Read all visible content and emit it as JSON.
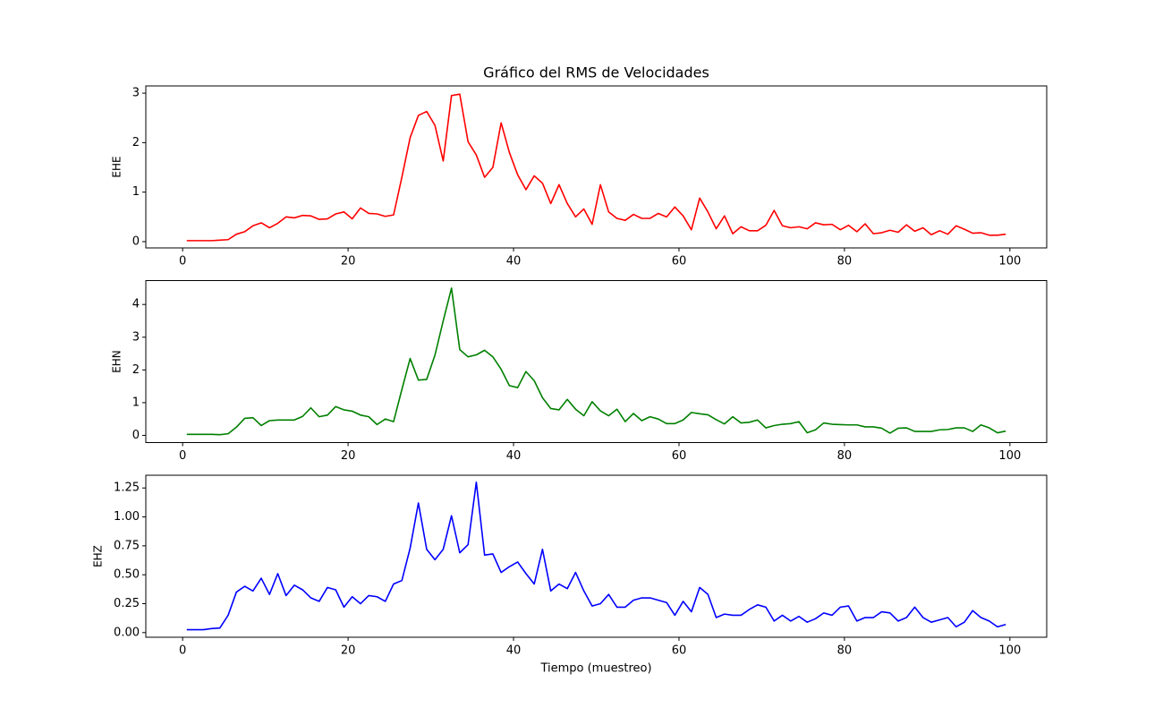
{
  "chart_data": [
    {
      "type": "line",
      "title": "Gráfico del RMS de Velocidades",
      "ylabel": "EHE",
      "color": "#ff0000",
      "x": [
        0.5,
        1.5,
        2.5,
        3.5,
        4.5,
        5.5,
        6.5,
        7.5,
        8.5,
        9.5,
        10.5,
        11.5,
        12.5,
        13.5,
        14.5,
        15.5,
        16.5,
        17.5,
        18.5,
        19.5,
        20.5,
        21.5,
        22.5,
        23.5,
        24.5,
        25.5,
        26.5,
        27.5,
        28.5,
        29.5,
        30.5,
        31.5,
        32.5,
        33.5,
        34.5,
        35.5,
        36.5,
        37.5,
        38.5,
        39.5,
        40.5,
        41.5,
        42.5,
        43.5,
        44.5,
        45.5,
        46.5,
        47.5,
        48.5,
        49.5,
        50.5,
        51.5,
        52.5,
        53.5,
        54.5,
        55.5,
        56.5,
        57.5,
        58.5,
        59.5,
        60.5,
        61.5,
        62.5,
        63.5,
        64.5,
        65.5,
        66.5,
        67.5,
        68.5,
        69.5,
        70.5,
        71.5,
        72.5,
        73.5,
        74.5,
        75.5,
        76.5,
        77.5,
        78.5,
        79.5,
        80.5,
        81.5,
        82.5,
        83.5,
        84.5,
        85.5,
        86.5,
        87.5,
        88.5,
        89.5,
        90.5,
        91.5,
        92.5,
        93.5,
        94.5,
        95.5,
        96.5,
        97.5,
        98.5,
        99.5
      ],
      "values": [
        0.02,
        0.02,
        0.02,
        0.02,
        0.03,
        0.04,
        0.15,
        0.2,
        0.32,
        0.38,
        0.28,
        0.37,
        0.5,
        0.48,
        0.53,
        0.52,
        0.45,
        0.46,
        0.56,
        0.6,
        0.46,
        0.68,
        0.57,
        0.56,
        0.51,
        0.54,
        1.3,
        2.1,
        2.55,
        2.63,
        2.35,
        1.63,
        2.95,
        2.98,
        2.02,
        1.75,
        1.3,
        1.5,
        2.4,
        1.8,
        1.35,
        1.05,
        1.33,
        1.18,
        0.77,
        1.15,
        0.77,
        0.5,
        0.66,
        0.35,
        1.15,
        0.6,
        0.47,
        0.43,
        0.55,
        0.47,
        0.47,
        0.57,
        0.5,
        0.7,
        0.52,
        0.24,
        0.88,
        0.6,
        0.26,
        0.52,
        0.16,
        0.3,
        0.22,
        0.22,
        0.33,
        0.63,
        0.32,
        0.28,
        0.3,
        0.26,
        0.38,
        0.34,
        0.35,
        0.24,
        0.33,
        0.2,
        0.36,
        0.16,
        0.18,
        0.23,
        0.19,
        0.34,
        0.21,
        0.28,
        0.14,
        0.22,
        0.15,
        0.32,
        0.25,
        0.17,
        0.18,
        0.13,
        0.13,
        0.15
      ],
      "xlim": [
        -4.45,
        104.45
      ],
      "xticks": [
        0,
        20,
        40,
        60,
        80,
        100
      ],
      "ylim": [
        -0.127,
        3.146
      ],
      "yticks": [
        0,
        1,
        2,
        3
      ]
    },
    {
      "type": "line",
      "ylabel": "EHN",
      "color": "#008000",
      "x": [
        0.5,
        1.5,
        2.5,
        3.5,
        4.5,
        5.5,
        6.5,
        7.5,
        8.5,
        9.5,
        10.5,
        11.5,
        12.5,
        13.5,
        14.5,
        15.5,
        16.5,
        17.5,
        18.5,
        19.5,
        20.5,
        21.5,
        22.5,
        23.5,
        24.5,
        25.5,
        26.5,
        27.5,
        28.5,
        29.5,
        30.5,
        31.5,
        32.5,
        33.5,
        34.5,
        35.5,
        36.5,
        37.5,
        38.5,
        39.5,
        40.5,
        41.5,
        42.5,
        43.5,
        44.5,
        45.5,
        46.5,
        47.5,
        48.5,
        49.5,
        50.5,
        51.5,
        52.5,
        53.5,
        54.5,
        55.5,
        56.5,
        57.5,
        58.5,
        59.5,
        60.5,
        61.5,
        62.5,
        63.5,
        64.5,
        65.5,
        66.5,
        67.5,
        68.5,
        69.5,
        70.5,
        71.5,
        72.5,
        73.5,
        74.5,
        75.5,
        76.5,
        77.5,
        78.5,
        79.5,
        80.5,
        81.5,
        82.5,
        83.5,
        84.5,
        85.5,
        86.5,
        87.5,
        88.5,
        89.5,
        90.5,
        91.5,
        92.5,
        93.5,
        94.5,
        95.5,
        96.5,
        97.5,
        98.5,
        99.5
      ],
      "values": [
        0.03,
        0.03,
        0.03,
        0.03,
        0.02,
        0.05,
        0.25,
        0.52,
        0.54,
        0.3,
        0.45,
        0.47,
        0.47,
        0.47,
        0.58,
        0.84,
        0.57,
        0.62,
        0.88,
        0.78,
        0.74,
        0.62,
        0.57,
        0.33,
        0.5,
        0.42,
        1.4,
        2.35,
        1.69,
        1.71,
        2.45,
        3.5,
        4.5,
        2.62,
        2.4,
        2.46,
        2.6,
        2.4,
        2.02,
        1.52,
        1.46,
        1.95,
        1.67,
        1.15,
        0.82,
        0.78,
        1.1,
        0.8,
        0.6,
        1.03,
        0.75,
        0.6,
        0.8,
        0.42,
        0.67,
        0.45,
        0.57,
        0.5,
        0.36,
        0.36,
        0.47,
        0.7,
        0.66,
        0.63,
        0.48,
        0.35,
        0.57,
        0.38,
        0.4,
        0.47,
        0.23,
        0.3,
        0.34,
        0.36,
        0.42,
        0.08,
        0.17,
        0.38,
        0.34,
        0.33,
        0.32,
        0.32,
        0.26,
        0.26,
        0.22,
        0.07,
        0.22,
        0.23,
        0.12,
        0.12,
        0.12,
        0.17,
        0.18,
        0.23,
        0.23,
        0.12,
        0.32,
        0.23,
        0.08,
        0.13
      ],
      "xlim": [
        -4.45,
        104.45
      ],
      "xticks": [
        0,
        20,
        40,
        60,
        80,
        100
      ],
      "ylim": [
        -0.22,
        4.73
      ],
      "yticks": [
        0,
        1,
        2,
        3,
        4
      ]
    },
    {
      "type": "line",
      "ylabel": "EHZ",
      "xlabel": "Tiempo (muestreo)",
      "color": "#0000ff",
      "x": [
        0.5,
        1.5,
        2.5,
        3.5,
        4.5,
        5.5,
        6.5,
        7.5,
        8.5,
        9.5,
        10.5,
        11.5,
        12.5,
        13.5,
        14.5,
        15.5,
        16.5,
        17.5,
        18.5,
        19.5,
        20.5,
        21.5,
        22.5,
        23.5,
        24.5,
        25.5,
        26.5,
        27.5,
        28.5,
        29.5,
        30.5,
        31.5,
        32.5,
        33.5,
        34.5,
        35.5,
        36.5,
        37.5,
        38.5,
        39.5,
        40.5,
        41.5,
        42.5,
        43.5,
        44.5,
        45.5,
        46.5,
        47.5,
        48.5,
        49.5,
        50.5,
        51.5,
        52.5,
        53.5,
        54.5,
        55.5,
        56.5,
        57.5,
        58.5,
        59.5,
        60.5,
        61.5,
        62.5,
        63.5,
        64.5,
        65.5,
        66.5,
        67.5,
        68.5,
        69.5,
        70.5,
        71.5,
        72.5,
        73.5,
        74.5,
        75.5,
        76.5,
        77.5,
        78.5,
        79.5,
        80.5,
        81.5,
        82.5,
        83.5,
        84.5,
        85.5,
        86.5,
        87.5,
        88.5,
        89.5,
        90.5,
        91.5,
        92.5,
        93.5,
        94.5,
        95.5,
        96.5,
        97.5,
        98.5,
        99.5
      ],
      "values": [
        0.025,
        0.025,
        0.025,
        0.035,
        0.04,
        0.15,
        0.35,
        0.4,
        0.36,
        0.47,
        0.33,
        0.51,
        0.32,
        0.41,
        0.37,
        0.3,
        0.27,
        0.39,
        0.37,
        0.22,
        0.31,
        0.25,
        0.32,
        0.31,
        0.27,
        0.42,
        0.45,
        0.73,
        1.12,
        0.72,
        0.63,
        0.72,
        1.01,
        0.69,
        0.76,
        1.3,
        0.67,
        0.68,
        0.52,
        0.57,
        0.61,
        0.51,
        0.42,
        0.72,
        0.36,
        0.42,
        0.38,
        0.52,
        0.36,
        0.23,
        0.25,
        0.33,
        0.22,
        0.22,
        0.28,
        0.3,
        0.3,
        0.28,
        0.26,
        0.15,
        0.27,
        0.18,
        0.39,
        0.33,
        0.13,
        0.16,
        0.15,
        0.15,
        0.2,
        0.24,
        0.22,
        0.1,
        0.15,
        0.1,
        0.14,
        0.09,
        0.12,
        0.17,
        0.15,
        0.22,
        0.23,
        0.1,
        0.13,
        0.13,
        0.18,
        0.17,
        0.1,
        0.13,
        0.22,
        0.13,
        0.09,
        0.11,
        0.13,
        0.05,
        0.09,
        0.19,
        0.13,
        0.1,
        0.05,
        0.07
      ],
      "xlim": [
        -4.45,
        104.45
      ],
      "xticks": [
        0,
        20,
        40,
        60,
        80,
        100
      ],
      "ylim": [
        -0.04,
        1.36
      ],
      "yticks": [
        {
          "value": 0,
          "label": "0.00"
        },
        {
          "value": 0.25,
          "label": "0.25"
        },
        {
          "value": 0.5,
          "label": "0.50"
        },
        {
          "value": 0.75,
          "label": "0.75"
        },
        {
          "value": 1,
          "label": "1.00"
        },
        {
          "value": 1.25,
          "label": "1.25"
        }
      ]
    }
  ]
}
